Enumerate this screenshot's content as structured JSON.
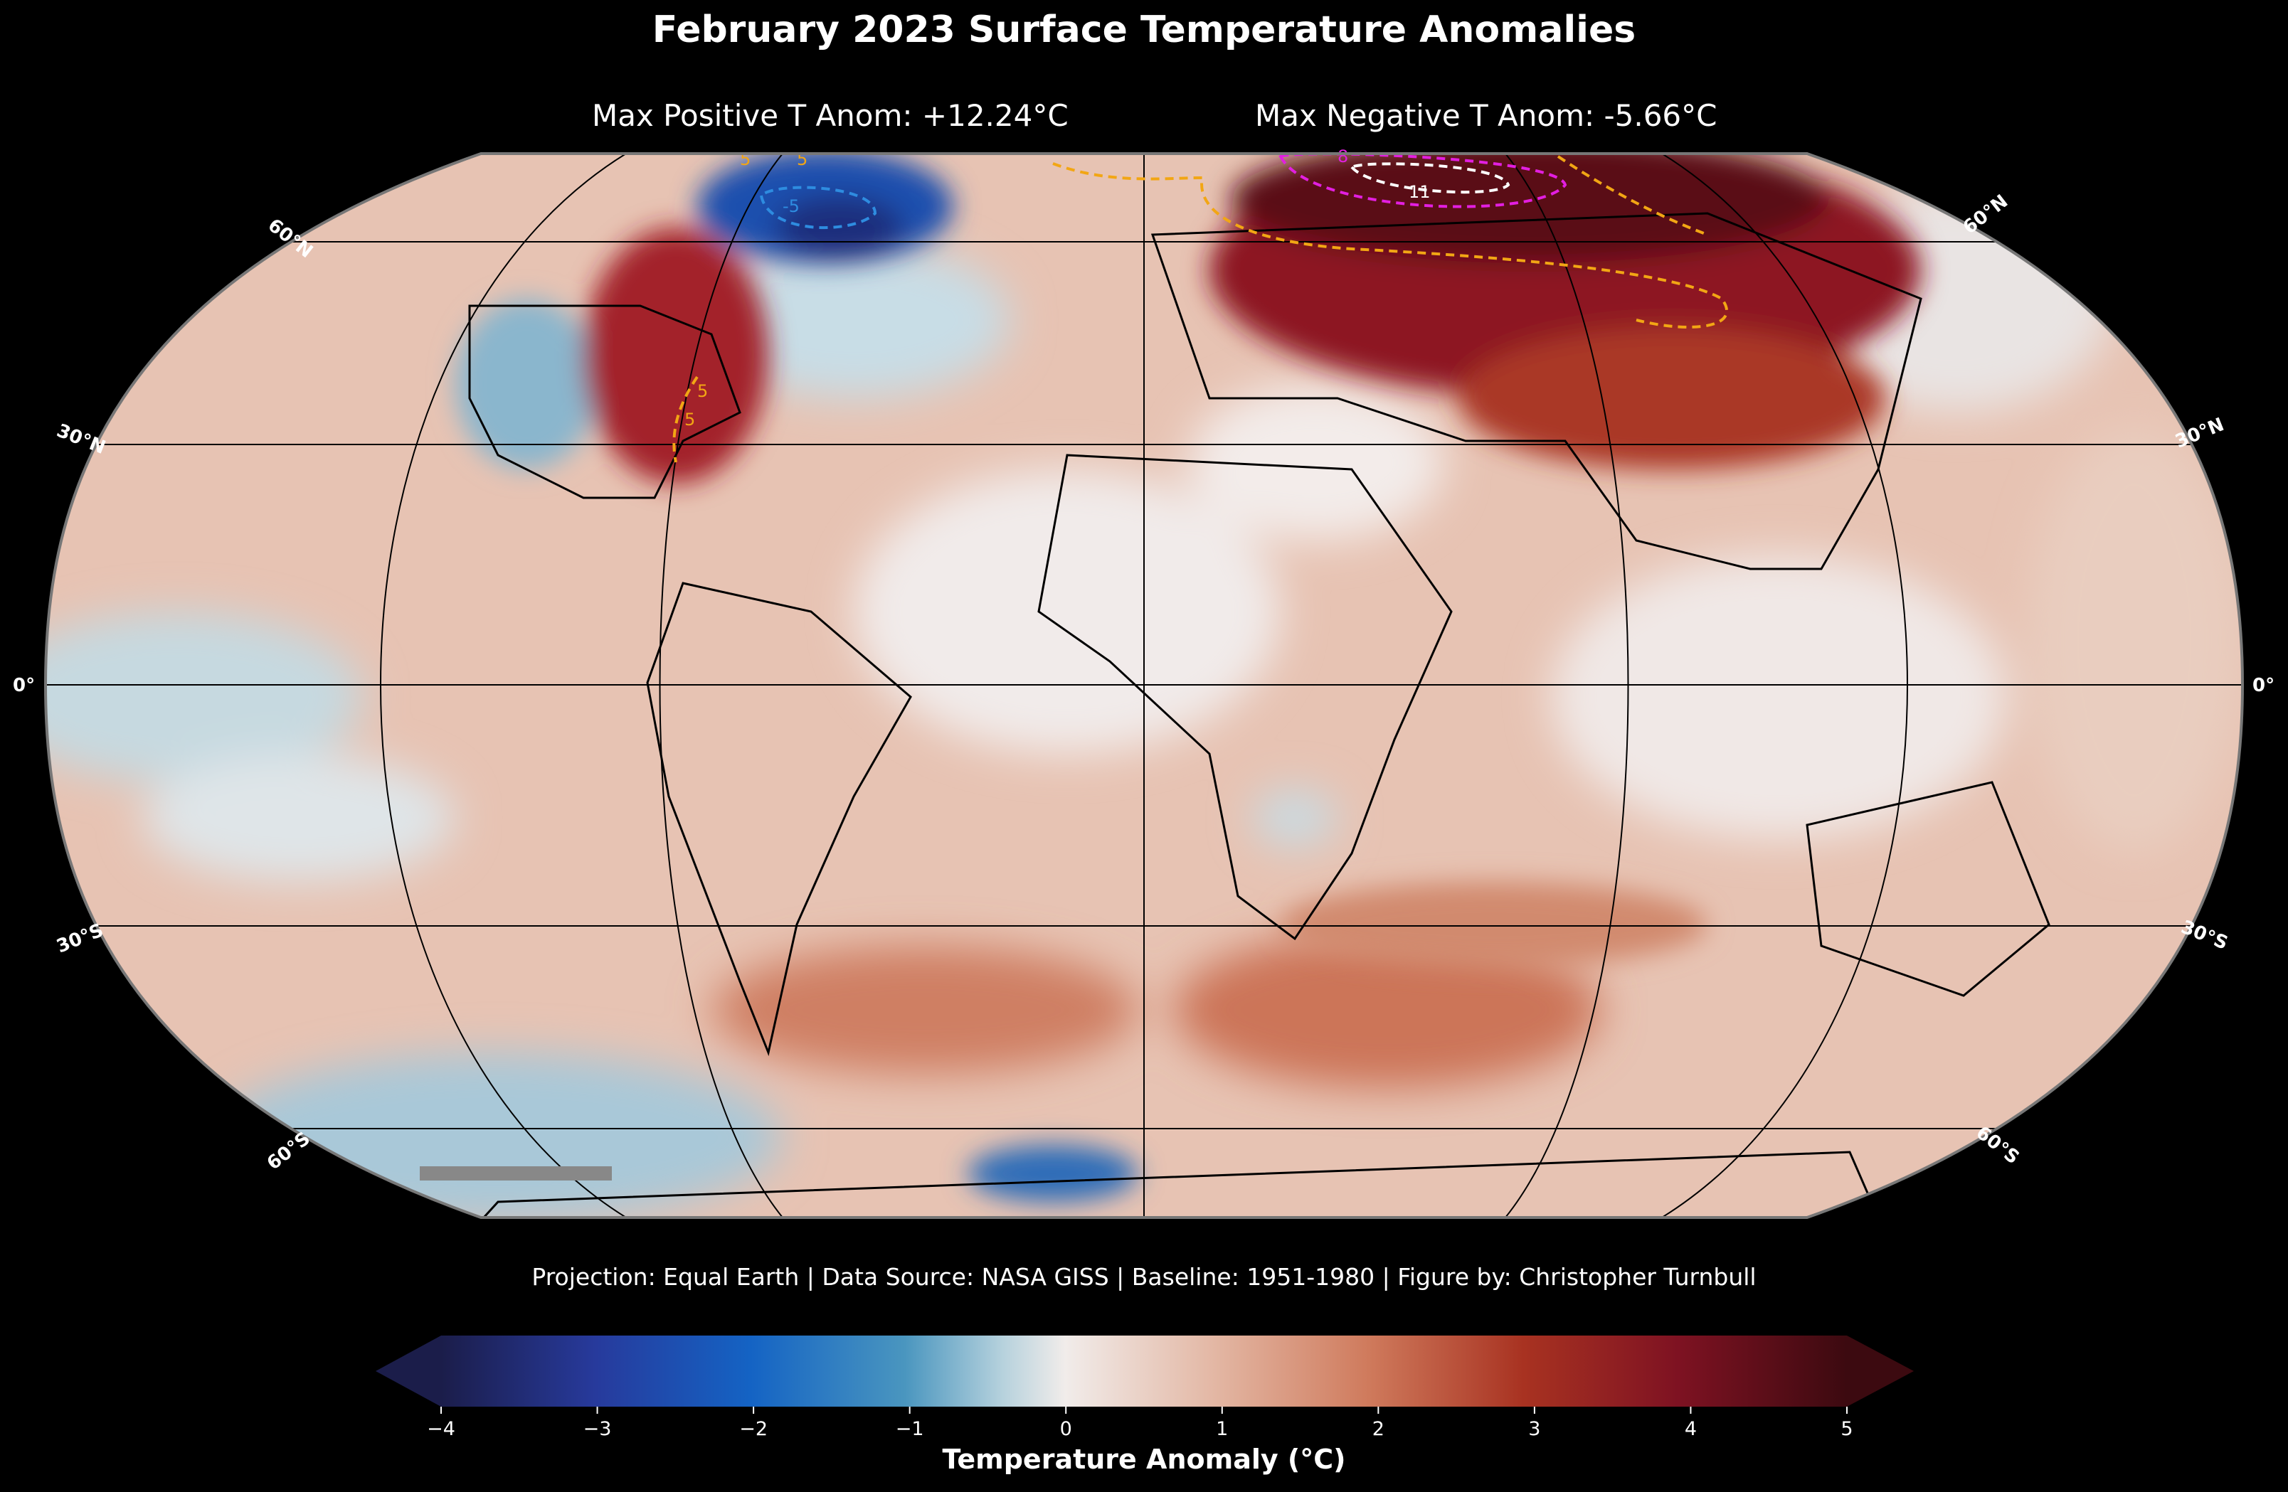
{
  "title": "February 2023 Surface Temperature Anomalies",
  "stats": {
    "max_positive": "Max Positive T Anom: +12.24°C",
    "max_negative": "Max Negative T Anom: -5.66°C"
  },
  "footer": "Projection: Equal Earth | Data Source: NASA GISS | Baseline: 1951-1980 | Figure by: Christopher Turnbull",
  "map": {
    "projection": "Equal Earth",
    "latitude_labels": {
      "n60_left": "60°N",
      "n30_left": "30°N",
      "eq_left": "0°",
      "s30_left": "30°S",
      "s60_left": "60°S",
      "n60_right": "60°N",
      "n30_right": "30°N",
      "eq_right": "0°",
      "s30_right": "30°S",
      "s60_right": "60°S"
    },
    "contour_labels": {
      "c5_a": "5",
      "c5_b": "5",
      "c5_c": "5",
      "c5_d": "5",
      "c8": "8",
      "c11": "11",
      "cneg5": "-5"
    }
  },
  "colorbar": {
    "label": "Temperature Anomaly (°C)",
    "ticks": [
      "−4",
      "−3",
      "−2",
      "−1",
      "0",
      "1",
      "2",
      "3",
      "4",
      "5"
    ],
    "min": -4,
    "max": 5,
    "colors": [
      "#1b1d4a",
      "#273a9c",
      "#1463c4",
      "#4a96bf",
      "#b7d2dd",
      "#f1ecea",
      "#e3b7a4",
      "#cf7a5c",
      "#a83221",
      "#7e1222",
      "#3c0a10"
    ]
  }
}
